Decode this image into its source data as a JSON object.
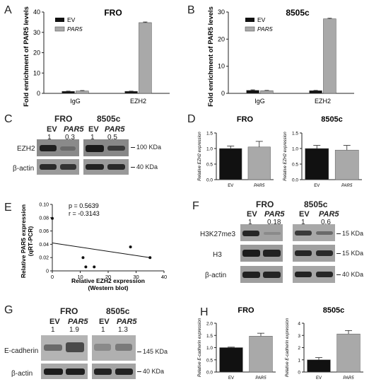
{
  "panels": {
    "A": {
      "letter": "A",
      "title": "FRO",
      "ylabel": "Fold enrichment of PAR5 levels",
      "legend": [
        "EV",
        "PAR5"
      ],
      "chart_data": {
        "type": "bar",
        "categories": [
          "IgG",
          "EZH2"
        ],
        "series": [
          {
            "name": "EV",
            "values": [
              1.0,
              1.0
            ]
          },
          {
            "name": "PAR5",
            "values": [
              1.2,
              34.8
            ]
          }
        ],
        "errors": [
          [
            0.1,
            0.1
          ],
          [
            0.2,
            0.3
          ]
        ],
        "ylim": [
          0,
          40
        ],
        "yticks": [
          0,
          10,
          20,
          30,
          40
        ]
      }
    },
    "B": {
      "letter": "B",
      "title": "8505c",
      "ylabel": "Fold enrichment of PAR5 levels",
      "legend": [
        "EV",
        "PAR5"
      ],
      "chart_data": {
        "type": "bar",
        "categories": [
          "IgG",
          "EZH2"
        ],
        "series": [
          {
            "name": "EV",
            "values": [
              1.1,
              1.0
            ]
          },
          {
            "name": "PAR5",
            "values": [
              1.0,
              27.5
            ]
          }
        ],
        "errors": [
          [
            0.2,
            0.1
          ],
          [
            0.1,
            0.2
          ]
        ],
        "ylim": [
          0,
          30
        ],
        "yticks": [
          0,
          10,
          20,
          30
        ]
      }
    },
    "C": {
      "letter": "C",
      "cell1": "FRO",
      "cell2": "8505c",
      "lane_labels": [
        "EV",
        "PAR5",
        "EV",
        "PAR5"
      ],
      "values": [
        "1",
        "0.3",
        "1",
        "0.5"
      ],
      "rows": [
        "EZH2",
        "β-actin"
      ],
      "markers": [
        "100 KDa",
        "40 KDa"
      ]
    },
    "D": {
      "letter": "D",
      "charts": [
        {
          "title": "FRO",
          "ylabel": "Relative EZH2 expression",
          "chart_data": {
            "type": "bar",
            "categories": [
              "EV",
              "PAR5"
            ],
            "values": [
              1.0,
              1.05
            ],
            "errors": [
              0.08,
              0.18
            ],
            "ylim": [
              0,
              1.5
            ],
            "yticks": [
              "0.0",
              "0.5",
              "1.0",
              "1.5"
            ]
          }
        },
        {
          "title": "8505c",
          "ylabel": "Relative EZH2 expression",
          "chart_data": {
            "type": "bar",
            "categories": [
              "EV",
              "PAR5"
            ],
            "values": [
              1.0,
              0.95
            ],
            "errors": [
              0.1,
              0.15
            ],
            "ylim": [
              0,
              1.5
            ],
            "yticks": [
              "0.0",
              "0.5",
              "1.0",
              "1.5"
            ]
          }
        }
      ]
    },
    "E": {
      "letter": "E",
      "stats": [
        "p = 0.5639",
        "r = -0.3143"
      ],
      "ylabel1": "Relative PAR5 expression",
      "ylabel2": "(qRT-PCR)",
      "xlabel1": "Relative EZH2 expression",
      "xlabel2": "(Western blot)",
      "chart_data": {
        "type": "scatter",
        "x": [
          0,
          11,
          12,
          15,
          28,
          35
        ],
        "y": [
          0.079,
          0.02,
          0.006,
          0.006,
          0.036,
          0.02
        ],
        "fit": {
          "x": [
            0,
            35
          ],
          "y": [
            0.042,
            0.02
          ]
        },
        "xlim": [
          0,
          40
        ],
        "ylim": [
          0,
          0.1
        ],
        "xticks": [
          "0",
          "10",
          "20",
          "30",
          "40"
        ],
        "yticks": [
          "0",
          "0.02",
          "0.04",
          "0.06",
          "0.08",
          "0.10"
        ]
      }
    },
    "F": {
      "letter": "F",
      "cell1": "FRO",
      "cell2": "8505c",
      "lane_labels": [
        "EV",
        "PAR5",
        "EV",
        "PAR5"
      ],
      "values": [
        "1",
        "0.18",
        "1",
        "0.6"
      ],
      "rows": [
        "H3K27me3",
        "H3",
        "β-actin"
      ],
      "markers": [
        "15 KDa",
        "15 KDa",
        "40 KDa"
      ]
    },
    "G": {
      "letter": "G",
      "cell1": "FRO",
      "cell2": "8505c",
      "lane_labels": [
        "EV",
        "PAR5",
        "EV",
        "PAR5"
      ],
      "values": [
        "1",
        "1.9",
        "1",
        "1.3"
      ],
      "rows": [
        "E-cadherin",
        "β-actin"
      ],
      "markers": [
        "145 KDa",
        "40 KDa"
      ]
    },
    "H": {
      "letter": "H",
      "charts": [
        {
          "title": "FRO",
          "ylabel": "Relative E-cadherin expression",
          "chart_data": {
            "type": "bar",
            "categories": [
              "EV",
              "PAR5"
            ],
            "values": [
              1.0,
              1.47
            ],
            "errors": [
              0.02,
              0.12
            ],
            "ylim": [
              0,
              2.0
            ],
            "yticks": [
              "0.0",
              "0.5",
              "1.0",
              "1.5",
              "2.0"
            ]
          }
        },
        {
          "title": "8505c",
          "ylabel": "Relative E-cadherin expression",
          "chart_data": {
            "type": "bar",
            "categories": [
              "EV",
              "PAR5"
            ],
            "values": [
              1.0,
              3.12
            ],
            "errors": [
              0.18,
              0.28
            ],
            "ylim": [
              0,
              4
            ],
            "yticks": [
              "0",
              "1",
              "2",
              "3",
              "4"
            ]
          }
        }
      ]
    }
  }
}
